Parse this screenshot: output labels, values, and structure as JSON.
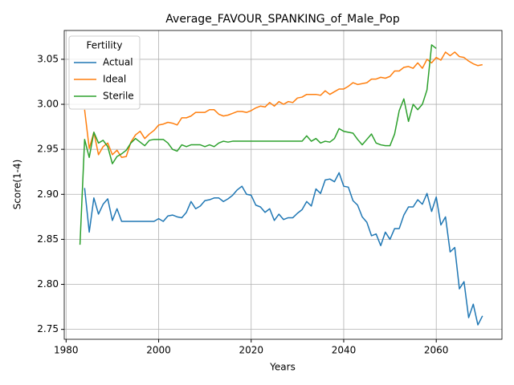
{
  "chart_data": {
    "type": "line",
    "title": "Average_FAVOUR_SPANKING_of_Male_Pop",
    "xlabel": "Years",
    "ylabel": "Score(1-4)",
    "legend_title": "Fertility",
    "legend": "upper left",
    "grid": true,
    "x": [
      1983,
      1984,
      1985,
      1986,
      1987,
      1988,
      1989,
      1990,
      1991,
      1992,
      1993,
      1994,
      1995,
      1996,
      1997,
      1998,
      1999,
      2000,
      2001,
      2002,
      2003,
      2004,
      2005,
      2006,
      2007,
      2008,
      2009,
      2010,
      2011,
      2012,
      2013,
      2014,
      2015,
      2016,
      2017,
      2018,
      2019,
      2020,
      2021,
      2022,
      2023,
      2024,
      2025,
      2026,
      2027,
      2028,
      2029,
      2030,
      2031,
      2032,
      2033,
      2034,
      2035,
      2036,
      2037,
      2038,
      2039,
      2040,
      2041,
      2042,
      2043,
      2044,
      2045,
      2046,
      2047,
      2048,
      2049,
      2050,
      2051,
      2052,
      2053,
      2054,
      2055,
      2056,
      2057,
      2058,
      2059,
      2060,
      2061,
      2062,
      2063,
      2064,
      2065,
      2066,
      2067,
      2068,
      2069,
      2070
    ],
    "series": [
      {
        "name": "Actual",
        "color": "#1f77b4",
        "values": [
          null,
          2.907,
          2.858,
          2.896,
          2.878,
          2.889,
          2.895,
          2.871,
          2.884,
          2.87,
          2.87,
          2.87,
          2.87,
          2.87,
          2.87,
          2.87,
          2.87,
          2.873,
          2.87,
          2.876,
          2.877,
          2.875,
          2.874,
          2.88,
          2.892,
          2.884,
          2.887,
          2.893,
          2.894,
          2.896,
          2.896,
          2.892,
          2.895,
          2.899,
          2.905,
          2.909,
          2.9,
          2.899,
          2.888,
          2.886,
          2.88,
          2.884,
          2.871,
          2.878,
          2.872,
          2.874,
          2.874,
          2.879,
          2.883,
          2.892,
          2.887,
          2.906,
          2.901,
          2.916,
          2.917,
          2.914,
          2.924,
          2.909,
          2.908,
          2.893,
          2.888,
          2.875,
          2.869,
          2.854,
          2.856,
          2.843,
          2.858,
          2.85,
          2.862,
          2.862,
          2.877,
          2.886,
          2.886,
          2.894,
          2.889,
          2.901,
          2.881,
          2.897,
          2.866,
          2.875,
          2.836,
          2.841,
          2.795,
          2.803,
          2.763,
          2.778,
          2.755,
          2.765
        ]
      },
      {
        "name": "Ideal",
        "color": "#ff7f0e",
        "values": [
          null,
          2.994,
          2.951,
          2.969,
          2.944,
          2.953,
          2.957,
          2.944,
          2.949,
          2.941,
          2.942,
          2.958,
          2.966,
          2.97,
          2.962,
          2.967,
          2.971,
          2.977,
          2.978,
          2.98,
          2.979,
          2.977,
          2.985,
          2.985,
          2.987,
          2.991,
          2.991,
          2.991,
          2.994,
          2.994,
          2.989,
          2.987,
          2.988,
          2.99,
          2.992,
          2.992,
          2.991,
          2.993,
          2.996,
          2.998,
          2.997,
          3.002,
          2.998,
          3.003,
          3.0,
          3.003,
          3.002,
          3.007,
          3.008,
          3.011,
          3.011,
          3.011,
          3.01,
          3.015,
          3.011,
          3.014,
          3.017,
          3.017,
          3.02,
          3.024,
          3.022,
          3.023,
          3.024,
          3.028,
          3.028,
          3.03,
          3.029,
          3.031,
          3.037,
          3.037,
          3.041,
          3.042,
          3.04,
          3.046,
          3.04,
          3.05,
          3.046,
          3.052,
          3.049,
          3.058,
          3.054,
          3.058,
          3.053,
          3.052,
          3.048,
          3.045,
          3.043,
          3.044
        ]
      },
      {
        "name": "Sterile",
        "color": "#2ca02c",
        "values": [
          2.844,
          2.961,
          2.941,
          2.969,
          2.957,
          2.96,
          2.953,
          2.934,
          2.942,
          2.945,
          2.949,
          2.957,
          2.962,
          2.958,
          2.954,
          2.96,
          2.961,
          2.961,
          2.961,
          2.957,
          2.95,
          2.948,
          2.955,
          2.953,
          2.955,
          2.955,
          2.955,
          2.953,
          2.955,
          2.953,
          2.957,
          2.959,
          2.958,
          2.959,
          2.959,
          2.959,
          2.959,
          2.959,
          2.959,
          2.959,
          2.959,
          2.959,
          2.959,
          2.959,
          2.959,
          2.959,
          2.959,
          2.959,
          2.959,
          2.965,
          2.959,
          2.962,
          2.957,
          2.959,
          2.958,
          2.962,
          2.973,
          2.97,
          2.969,
          2.968,
          2.961,
          2.955,
          2.961,
          2.967,
          2.957,
          2.955,
          2.954,
          2.954,
          2.967,
          2.993,
          3.006,
          2.981,
          3.0,
          2.994,
          3.0,
          3.016,
          3.066,
          3.062,
          null,
          null,
          null,
          null,
          null,
          null,
          null,
          null,
          null,
          null
        ]
      }
    ],
    "xlim": [
      1979.6,
      2074.2
    ],
    "xticks": [
      1980,
      2000,
      2020,
      2040,
      2060
    ],
    "ylim": [
      2.739,
      3.082
    ],
    "yticks": [
      2.75,
      {
        "value": 2.8,
        "label": "2.80"
      },
      2.85,
      {
        "value": 2.9,
        "label": "2.90"
      },
      2.95,
      {
        "value": 3.0,
        "label": "3.00"
      },
      3.05
    ]
  }
}
